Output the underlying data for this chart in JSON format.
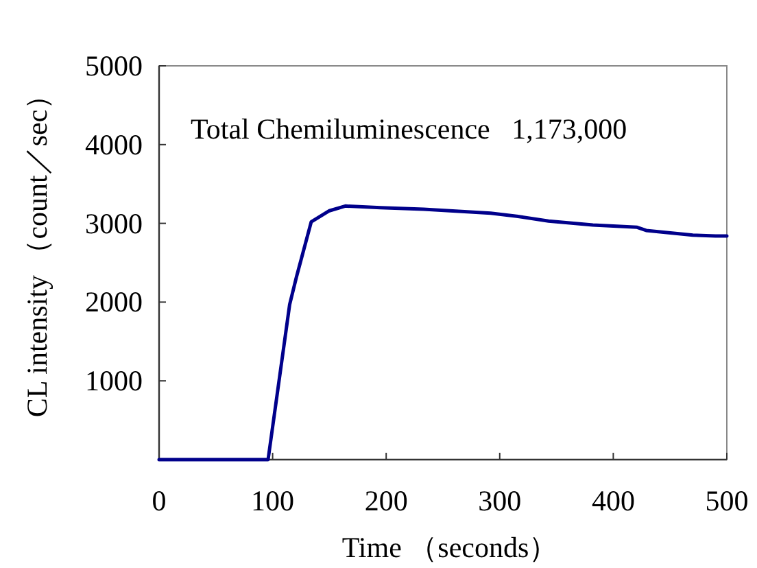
{
  "chart_data": {
    "type": "line",
    "xlabel": "Time （seconds）",
    "ylabel": "CL intensity （count／sec）",
    "annotations": [
      "Total Chemiluminescence   1,173,000"
    ],
    "series": [
      {
        "color": "#00008b",
        "x": [
          0,
          96,
          115,
          121,
          134,
          150,
          164,
          195,
          233,
          292,
          315,
          343,
          382,
          421,
          429,
          470,
          490,
          500
        ],
        "values": [
          0,
          0,
          1970,
          2320,
          3020,
          3160,
          3220,
          3200,
          3180,
          3130,
          3090,
          3030,
          2980,
          2950,
          2910,
          2850,
          2840,
          2840
        ]
      }
    ],
    "xlim": [
      0,
      500
    ],
    "ylim": [
      0,
      5000
    ],
    "xticks": [
      0,
      100,
      200,
      300,
      400,
      500
    ],
    "yticks": [
      {
        "value": 0,
        "label": null
      },
      1000,
      2000,
      3000,
      4000,
      5000
    ],
    "grid": false,
    "marker": "none",
    "line_style": "solid"
  }
}
